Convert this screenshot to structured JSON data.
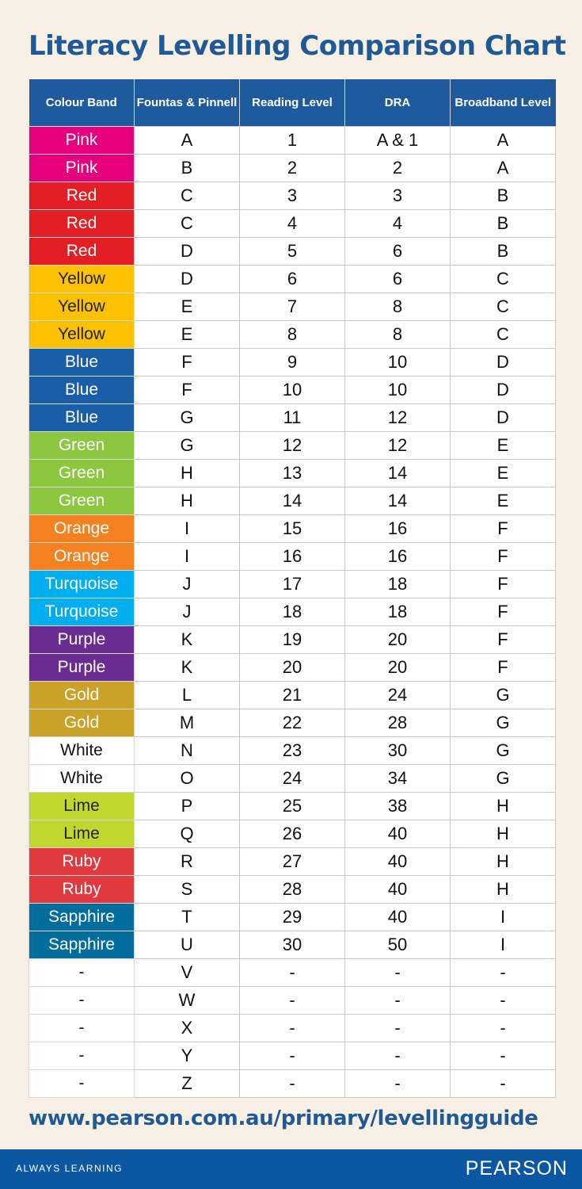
{
  "title": "Literacy Levelling Comparison Chart",
  "table": {
    "headers": [
      "Colour Band",
      "Fountas & Pinnell",
      "Reading Level",
      "DRA",
      "Broadband Level"
    ],
    "rows": [
      [
        "Pink",
        "A",
        "1",
        "A & 1",
        "A"
      ],
      [
        "Pink",
        "B",
        "2",
        "2",
        "A"
      ],
      [
        "Red",
        "C",
        "3",
        "3",
        "B"
      ],
      [
        "Red",
        "C",
        "4",
        "4",
        "B"
      ],
      [
        "Red",
        "D",
        "5",
        "6",
        "B"
      ],
      [
        "Yellow",
        "D",
        "6",
        "6",
        "C"
      ],
      [
        "Yellow",
        "E",
        "7",
        "8",
        "C"
      ],
      [
        "Yellow",
        "E",
        "8",
        "8",
        "C"
      ],
      [
        "Blue",
        "F",
        "9",
        "10",
        "D"
      ],
      [
        "Blue",
        "F",
        "10",
        "10",
        "D"
      ],
      [
        "Blue",
        "G",
        "11",
        "12",
        "D"
      ],
      [
        "Green",
        "G",
        "12",
        "12",
        "E"
      ],
      [
        "Green",
        "H",
        "13",
        "14",
        "E"
      ],
      [
        "Green",
        "H",
        "14",
        "14",
        "E"
      ],
      [
        "Orange",
        "I",
        "15",
        "16",
        "F"
      ],
      [
        "Orange",
        "I",
        "16",
        "16",
        "F"
      ],
      [
        "Turquoise",
        "J",
        "17",
        "18",
        "F"
      ],
      [
        "Turquoise",
        "J",
        "18",
        "18",
        "F"
      ],
      [
        "Purple",
        "K",
        "19",
        "20",
        "F"
      ],
      [
        "Purple",
        "K",
        "20",
        "20",
        "F"
      ],
      [
        "Gold",
        "L",
        "21",
        "24",
        "G"
      ],
      [
        "Gold",
        "M",
        "22",
        "28",
        "G"
      ],
      [
        "White",
        "N",
        "23",
        "30",
        "G"
      ],
      [
        "White",
        "O",
        "24",
        "34",
        "G"
      ],
      [
        "Lime",
        "P",
        "25",
        "38",
        "H"
      ],
      [
        "Lime",
        "Q",
        "26",
        "40",
        "H"
      ],
      [
        "Ruby",
        "R",
        "27",
        "40",
        "H"
      ],
      [
        "Ruby",
        "S",
        "28",
        "40",
        "H"
      ],
      [
        "Sapphire",
        "T",
        "29",
        "40",
        "I"
      ],
      [
        "Sapphire",
        "U",
        "30",
        "50",
        "I"
      ],
      [
        "-",
        "V",
        "-",
        "-",
        "-"
      ],
      [
        "-",
        "W",
        "-",
        "-",
        "-"
      ],
      [
        "-",
        "X",
        "-",
        "-",
        "-"
      ],
      [
        "-",
        "Y",
        "-",
        "-",
        "-"
      ],
      [
        "-",
        "Z",
        "-",
        "-",
        "-"
      ]
    ]
  },
  "band_colors": {
    "Pink": "#e6007e",
    "Red": "#e31e24",
    "Yellow": "#fcc200",
    "Blue": "#1a5ea8",
    "Green": "#8dc63f",
    "Orange": "#f58220",
    "Turquoise": "#00aeef",
    "Purple": "#6b2c91",
    "Gold": "#c9a227",
    "White": "#ffffff",
    "Lime": "#c1d72f",
    "Ruby": "#e0393e",
    "Sapphire": "#006d9c",
    "-": "#ffffff"
  },
  "url": "www.pearson.com.au/primary/levellingguide",
  "footer": {
    "tagline": "ALWAYS LEARNING",
    "logo": "PEARSON"
  },
  "colors": {
    "title": "#1f5a96",
    "header_bg": "#1f5a9e",
    "footer_bg": "#0b57a4",
    "background": "#f8f0e4"
  }
}
